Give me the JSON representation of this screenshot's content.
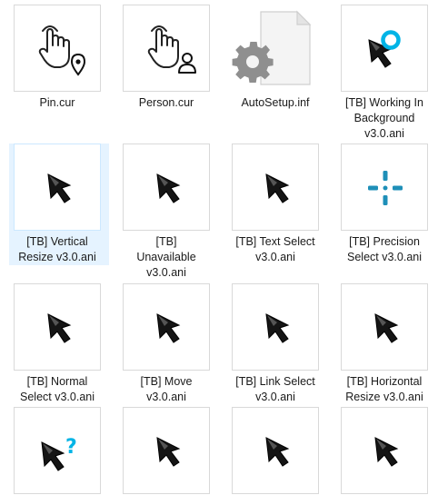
{
  "files": [
    {
      "name": "Pin.cur",
      "icon": "hand-pin-icon",
      "selected": false
    },
    {
      "name": "Person.cur",
      "icon": "hand-person-icon",
      "selected": false
    },
    {
      "name": "AutoSetup.inf",
      "icon": "settings-file-icon",
      "selected": false
    },
    {
      "name": "[TB] Working In\nBackground\nv3.0.ani",
      "icon": "arrow-busy-icon",
      "selected": false
    },
    {
      "name": "[TB] Vertical\nResize v3.0.ani",
      "icon": "arrow-cursor-icon",
      "selected": true
    },
    {
      "name": "[TB]\nUnavailable\nv3.0.ani",
      "icon": "arrow-cursor-icon",
      "selected": false
    },
    {
      "name": "[TB] Text Select\nv3.0.ani",
      "icon": "arrow-cursor-icon",
      "selected": false
    },
    {
      "name": "[TB] Precision\nSelect v3.0.ani",
      "icon": "crosshair-icon",
      "selected": false
    },
    {
      "name": "[TB] Normal\nSelect v3.0.ani",
      "icon": "arrow-cursor-icon",
      "selected": false
    },
    {
      "name": "[TB] Move\nv3.0.ani",
      "icon": "arrow-cursor-icon",
      "selected": false
    },
    {
      "name": "[TB] Link Select\nv3.0.ani",
      "icon": "arrow-cursor-icon",
      "selected": false
    },
    {
      "name": "[TB] Horizontal\nResize v3.0.ani",
      "icon": "arrow-cursor-icon",
      "selected": false
    },
    {
      "name": "",
      "icon": "arrow-help-icon",
      "selected": false
    },
    {
      "name": "",
      "icon": "arrow-cursor-icon",
      "selected": false
    },
    {
      "name": "",
      "icon": "arrow-cursor-icon",
      "selected": false
    },
    {
      "name": "",
      "icon": "arrow-cursor-icon",
      "selected": false
    }
  ],
  "colors": {
    "accent": "#00b4e6",
    "selection": "#e5f3ff",
    "cursor": "#111111"
  }
}
